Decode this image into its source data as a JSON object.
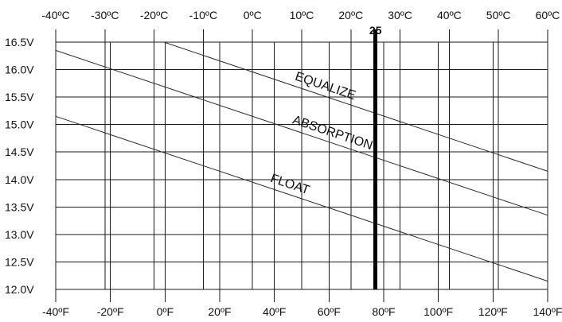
{
  "chart_data": {
    "type": "line",
    "title": "",
    "xlabel": "",
    "ylabel": "",
    "x_axis_bottom": {
      "unit": "F",
      "range": [
        -40,
        140
      ],
      "ticks": [
        -40,
        -20,
        0,
        20,
        40,
        60,
        80,
        100,
        120,
        140
      ],
      "tick_labels": [
        "-40ºF",
        "-20ºF",
        "0ºF",
        "20ºF",
        "40ºF",
        "60ºF",
        "80ºF",
        "100ºF",
        "120ºF",
        "140ºF"
      ]
    },
    "x_axis_top": {
      "unit": "C",
      "range": [
        -40,
        60
      ],
      "ticks": [
        -40,
        -30,
        -20,
        -10,
        0,
        10,
        20,
        30,
        40,
        50,
        60
      ],
      "tick_labels": [
        "-40ºC",
        "-30ºC",
        "-20ºC",
        "-10ºC",
        "0ºC",
        "10ºC",
        "20ºC",
        "30ºC",
        "40ºC",
        "50ºC",
        "60ºC"
      ]
    },
    "y_axis": {
      "unit": "V",
      "range": [
        12.0,
        16.5
      ],
      "ticks": [
        12.0,
        12.5,
        13.0,
        13.5,
        14.0,
        14.5,
        15.0,
        15.5,
        16.0,
        16.5
      ],
      "tick_labels": [
        "12.0V",
        "12.5V",
        "13.0V",
        "13.5V",
        "14.0V",
        "14.5V",
        "15.0V",
        "15.5V",
        "16.0V",
        "16.5V"
      ]
    },
    "grid": true,
    "series": [
      {
        "name": "EQUALIZE",
        "color": "#2b2b2b",
        "x_unit": "C",
        "points": [
          [
            -18,
            16.5
          ],
          [
            60,
            14.15
          ]
        ]
      },
      {
        "name": "ABSORPTION",
        "color": "#2b2b2b",
        "x_unit": "C",
        "points": [
          [
            -40,
            16.35
          ],
          [
            60,
            13.35
          ]
        ]
      },
      {
        "name": "FLOAT",
        "color": "#2b2b2b",
        "x_unit": "C",
        "points": [
          [
            -40,
            15.15
          ],
          [
            60,
            12.15
          ]
        ]
      }
    ],
    "reference_line": {
      "label": "25",
      "axis": "C",
      "value": 25,
      "color": "#000000"
    }
  }
}
